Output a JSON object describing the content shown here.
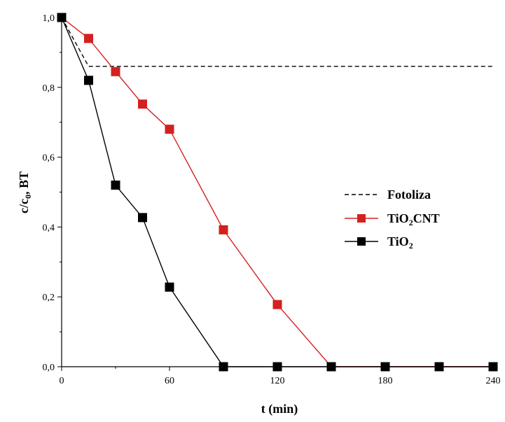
{
  "chart_data": {
    "type": "line",
    "xlabel": "t (min)",
    "ylabel": {
      "main": "c/c",
      "sub": "0",
      "rest": ", BT"
    },
    "xlim": [
      0,
      240
    ],
    "ylim": [
      0,
      1.0
    ],
    "xticks": [
      0,
      60,
      120,
      180,
      240
    ],
    "xtick_labels": [
      "0",
      "60",
      "120",
      "180",
      "240"
    ],
    "yticks": [
      0,
      0.2,
      0.4,
      0.6,
      0.8,
      1.0
    ],
    "ytick_labels": [
      "0,0",
      "0,2",
      "0,4",
      "0,6",
      "0,8",
      "1,0"
    ],
    "grid": false,
    "legend_position": "right",
    "series": [
      {
        "key": "fotoliza",
        "name": "Fotoliza",
        "label_parts": {
          "main": "Fotoliza",
          "sub": "",
          "rest": ""
        },
        "color": "#000000",
        "style": "dashed",
        "markers": false,
        "x": [
          0,
          15,
          240
        ],
        "y": [
          1.0,
          0.86,
          0.86
        ]
      },
      {
        "key": "tio2cnt",
        "name": "TiO2CNT",
        "label_parts": {
          "main": "TiO",
          "sub": "2",
          "rest": "CNT"
        },
        "color": "#d42020",
        "style": "solid",
        "markers": true,
        "x": [
          0,
          15,
          30,
          45,
          60,
          90,
          120,
          150,
          180,
          210,
          240
        ],
        "y": [
          1.0,
          0.94,
          0.845,
          0.752,
          0.68,
          0.392,
          0.178,
          0.0,
          0.0,
          0.0,
          0.0
        ]
      },
      {
        "key": "tio2",
        "name": "TiO2",
        "label_parts": {
          "main": "TiO",
          "sub": "2",
          "rest": ""
        },
        "color": "#000000",
        "style": "solid",
        "markers": true,
        "x": [
          0,
          15,
          30,
          45,
          60,
          90,
          120,
          150,
          180,
          210,
          240
        ],
        "y": [
          1.0,
          0.82,
          0.52,
          0.427,
          0.228,
          0.0,
          0.0,
          0.0,
          0.0,
          0.0,
          0.0
        ]
      }
    ]
  }
}
